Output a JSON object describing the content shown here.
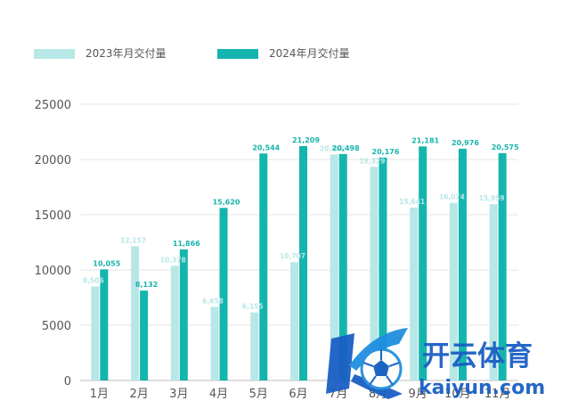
{
  "chart_data": {
    "type": "bar",
    "categories": [
      "1月",
      "2月",
      "3月",
      "4月",
      "5月",
      "6月",
      "7月",
      "8月",
      "9月",
      "10月",
      "11月"
    ],
    "series": [
      {
        "name": "2023年月交付量",
        "color": "#b7e7e6",
        "values": [
          8506,
          12157,
          10378,
          6658,
          6155,
          10707,
          20462,
          19329,
          15641,
          16074,
          15959
        ],
        "labels": [
          "8,506",
          "12,157",
          "10,378",
          "6,658",
          "6,155",
          "10,707",
          "20,462",
          "19,329",
          "15,641",
          "16,074",
          "15,959"
        ]
      },
      {
        "name": "2024年月交付量",
        "color": "#14b5ae",
        "values": [
          10055,
          8132,
          11866,
          15620,
          20544,
          21209,
          20498,
          20176,
          21181,
          20976,
          20575
        ],
        "labels": [
          "10,055",
          "8,132",
          "11,866",
          "15,620",
          "20,544",
          "21,209",
          "20,498",
          "20,176",
          "21,181",
          "20,976",
          "20,575"
        ]
      }
    ],
    "ylim": [
      0,
      25000
    ],
    "yticks": [
      "0",
      "5000",
      "10000",
      "15000",
      "20000",
      "25000"
    ],
    "grid": true,
    "legend": "top-left"
  },
  "watermark": {
    "title": "开云体育",
    "subtitle": "kaiyun.com",
    "color": "#1a5fc4",
    "icon": "k-soccer-ball-logo"
  }
}
